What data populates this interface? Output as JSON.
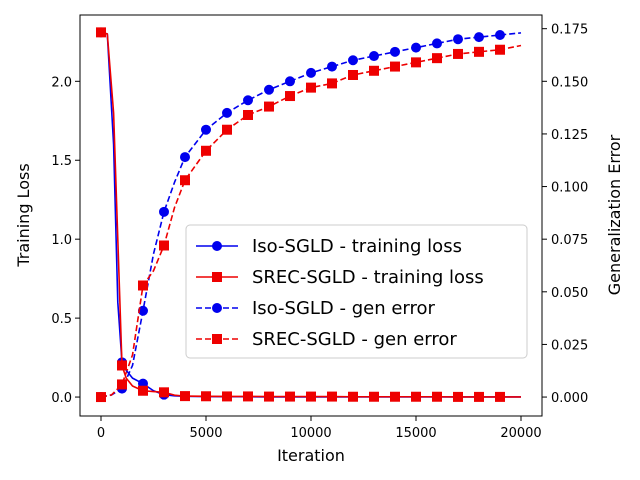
{
  "chart_data": {
    "type": "line",
    "title": "",
    "xlabel": "Iteration",
    "ylabel_left": "Training Loss",
    "ylabel_right": "Generalization Error",
    "xlim": [
      -1000,
      21000
    ],
    "ylim_left": [
      -0.12,
      2.42
    ],
    "ylim_right": [
      -0.009,
      0.1815
    ],
    "x_ticks": [
      0,
      5000,
      10000,
      15000,
      20000
    ],
    "x_tick_labels": [
      "0",
      "5000",
      "10000",
      "15000",
      "20000"
    ],
    "y_left_ticks": [
      0.0,
      0.5,
      1.0,
      1.5,
      2.0
    ],
    "y_left_tick_labels": [
      "0.0",
      "0.5",
      "1.0",
      "1.5",
      "2.0"
    ],
    "y_right_ticks": [
      0.0,
      0.025,
      0.05,
      0.075,
      0.1,
      0.125,
      0.15,
      0.175
    ],
    "y_right_tick_labels": [
      "0.000",
      "0.025",
      "0.050",
      "0.075",
      "0.100",
      "0.125",
      "0.150",
      "0.175"
    ],
    "grid": false,
    "legend_position": "center-right",
    "series": [
      {
        "name": "Iso-SGLD - training loss",
        "axis": "left",
        "color": "#0000ee",
        "linestyle": "solid",
        "marker": "circle",
        "x": [
          0,
          300,
          600,
          800,
          1000,
          1200,
          1500,
          2000,
          2500,
          3000,
          3500,
          4000,
          5000,
          6000,
          7000,
          8000,
          9000,
          10000,
          11000,
          12000,
          13000,
          14000,
          15000,
          16000,
          17000,
          18000,
          19000,
          20000
        ],
        "values": [
          2.31,
          2.3,
          1.6,
          0.6,
          0.22,
          0.17,
          0.12,
          0.085,
          0.04,
          0.015,
          0.008,
          0.005,
          0.003,
          0.002,
          0.002,
          0.001,
          0.001,
          0.001,
          0.001,
          0.001,
          0.001,
          0.001,
          0.001,
          0.001,
          0.001,
          0.001,
          0.001,
          0.001
        ],
        "marker_x": [
          0,
          1000,
          2000,
          3000
        ]
      },
      {
        "name": "SREC-SGLD - training loss",
        "axis": "left",
        "color": "#ee0000",
        "linestyle": "solid",
        "marker": "square",
        "x": [
          0,
          300,
          600,
          800,
          1000,
          1200,
          1500,
          2000,
          2500,
          3000,
          3500,
          4000,
          5000,
          6000,
          7000,
          8000,
          9000,
          10000,
          11000,
          12000,
          13000,
          14000,
          15000,
          16000,
          17000,
          18000,
          19000,
          20000
        ],
        "values": [
          2.31,
          2.3,
          1.8,
          1.0,
          0.2,
          0.12,
          0.07,
          0.04,
          0.035,
          0.03,
          0.012,
          0.006,
          0.005,
          0.004,
          0.004,
          0.003,
          0.003,
          0.003,
          0.003,
          0.002,
          0.002,
          0.002,
          0.002,
          0.002,
          0.001,
          0.001,
          0.001,
          0.001
        ],
        "marker_x": [
          0,
          1000,
          2000,
          3000,
          4000,
          5000,
          6000,
          7000,
          8000,
          9000,
          10000,
          11000,
          12000,
          13000,
          14000,
          15000,
          16000,
          17000,
          18000,
          19000
        ]
      },
      {
        "name": "Iso-SGLD - gen error",
        "axis": "right",
        "color": "#0000ee",
        "linestyle": "dashed",
        "marker": "circle",
        "x": [
          0,
          500,
          1000,
          1500,
          2000,
          2500,
          3000,
          3500,
          4000,
          5000,
          6000,
          7000,
          8000,
          9000,
          10000,
          11000,
          12000,
          13000,
          14000,
          15000,
          16000,
          17000,
          18000,
          19000,
          20000
        ],
        "values": [
          0.0,
          0.001,
          0.004,
          0.015,
          0.041,
          0.068,
          0.088,
          0.102,
          0.114,
          0.127,
          0.135,
          0.141,
          0.146,
          0.15,
          0.154,
          0.157,
          0.16,
          0.162,
          0.164,
          0.166,
          0.168,
          0.17,
          0.171,
          0.172,
          0.173
        ],
        "marker_x": [
          0,
          1000,
          2000,
          3000,
          4000,
          5000,
          6000,
          7000,
          8000,
          9000,
          10000,
          11000,
          12000,
          13000,
          14000,
          15000,
          16000,
          17000,
          18000,
          19000
        ]
      },
      {
        "name": "SREC-SGLD - gen error",
        "axis": "right",
        "color": "#ee0000",
        "linestyle": "dashed",
        "marker": "square",
        "x": [
          0,
          500,
          1000,
          1500,
          2000,
          2500,
          3000,
          3500,
          4000,
          5000,
          6000,
          7000,
          8000,
          9000,
          10000,
          11000,
          12000,
          13000,
          14000,
          15000,
          16000,
          17000,
          18000,
          19000,
          20000
        ],
        "values": [
          0.0,
          0.001,
          0.006,
          0.02,
          0.053,
          0.06,
          0.072,
          0.09,
          0.103,
          0.117,
          0.127,
          0.134,
          0.138,
          0.143,
          0.147,
          0.149,
          0.153,
          0.155,
          0.157,
          0.159,
          0.161,
          0.163,
          0.164,
          0.165,
          0.167
        ],
        "marker_x": [
          0,
          1000,
          2000,
          3000,
          4000,
          5000,
          6000,
          7000,
          8000,
          9000,
          10000,
          11000,
          12000,
          13000,
          14000,
          15000,
          16000,
          17000,
          18000,
          19000
        ]
      }
    ]
  }
}
